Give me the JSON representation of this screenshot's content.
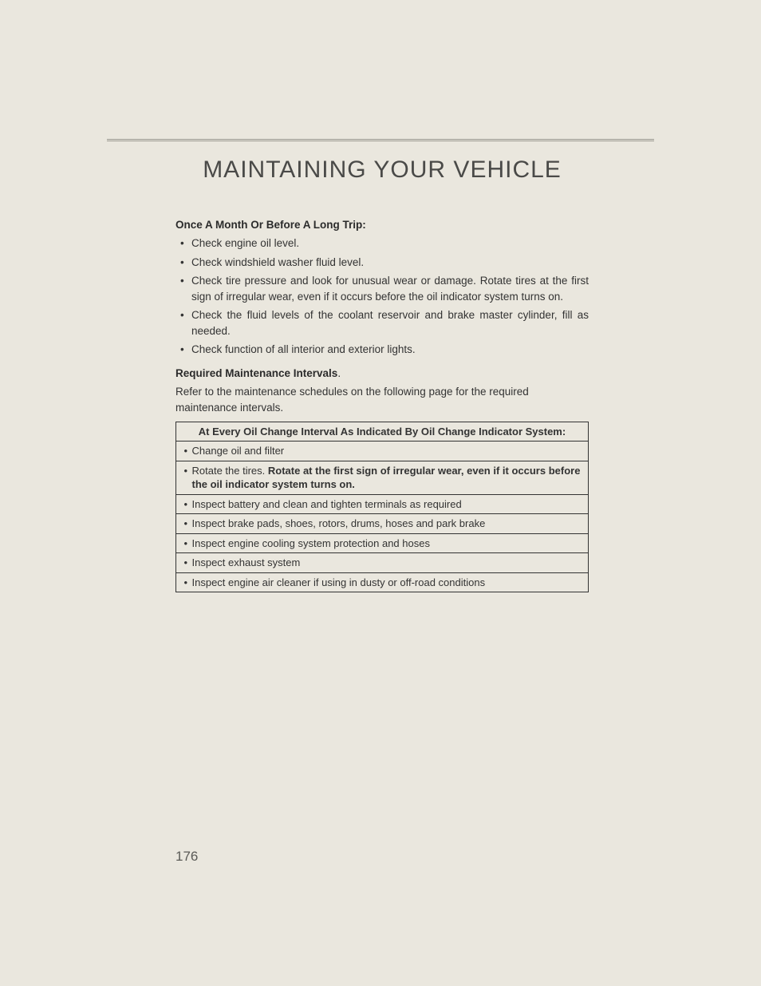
{
  "page": {
    "title": "MAINTAINING YOUR VEHICLE",
    "number": "176",
    "background_color": "#eae7de",
    "text_color": "#333333",
    "rule_color": "#9a9890",
    "title_color": "#4a4a48",
    "title_fontsize": 30,
    "body_fontsize": 13.5,
    "font_family_title": "Gill Sans",
    "font_family_body": "Arial Narrow"
  },
  "section1": {
    "heading": "Once A Month Or Before A Long Trip:",
    "items": [
      "Check engine oil level.",
      "Check windshield washer fluid level.",
      "Check tire pressure and look for unusual wear or damage. Rotate tires at the first sign of irregular wear, even if it occurs before the oil indicator system turns on.",
      "Check the fluid levels of the coolant reservoir and brake master cylinder, fill as needed.",
      "Check function of all interior and exterior lights."
    ]
  },
  "section2": {
    "heading": "Required Maintenance Intervals",
    "heading_suffix": ".",
    "body": "Refer to the maintenance schedules on the following page for the required maintenance intervals."
  },
  "table": {
    "type": "table",
    "border_color": "#333333",
    "header": "At Every Oil Change Interval As Indicated By Oil Change Indicator System:",
    "rows": [
      {
        "text": "Change oil and filter"
      },
      {
        "prefix": "Rotate the tires. ",
        "bold": "Rotate at the first sign of irregular wear, even if it occurs before the oil indicator system turns on."
      },
      {
        "text": "Inspect battery and clean and tighten terminals as required"
      },
      {
        "text": "Inspect brake pads, shoes, rotors, drums, hoses and park brake"
      },
      {
        "text": "Inspect engine cooling system protection and hoses"
      },
      {
        "text": "Inspect exhaust system"
      },
      {
        "text": "Inspect engine air cleaner if using in dusty or off-road conditions"
      }
    ]
  }
}
